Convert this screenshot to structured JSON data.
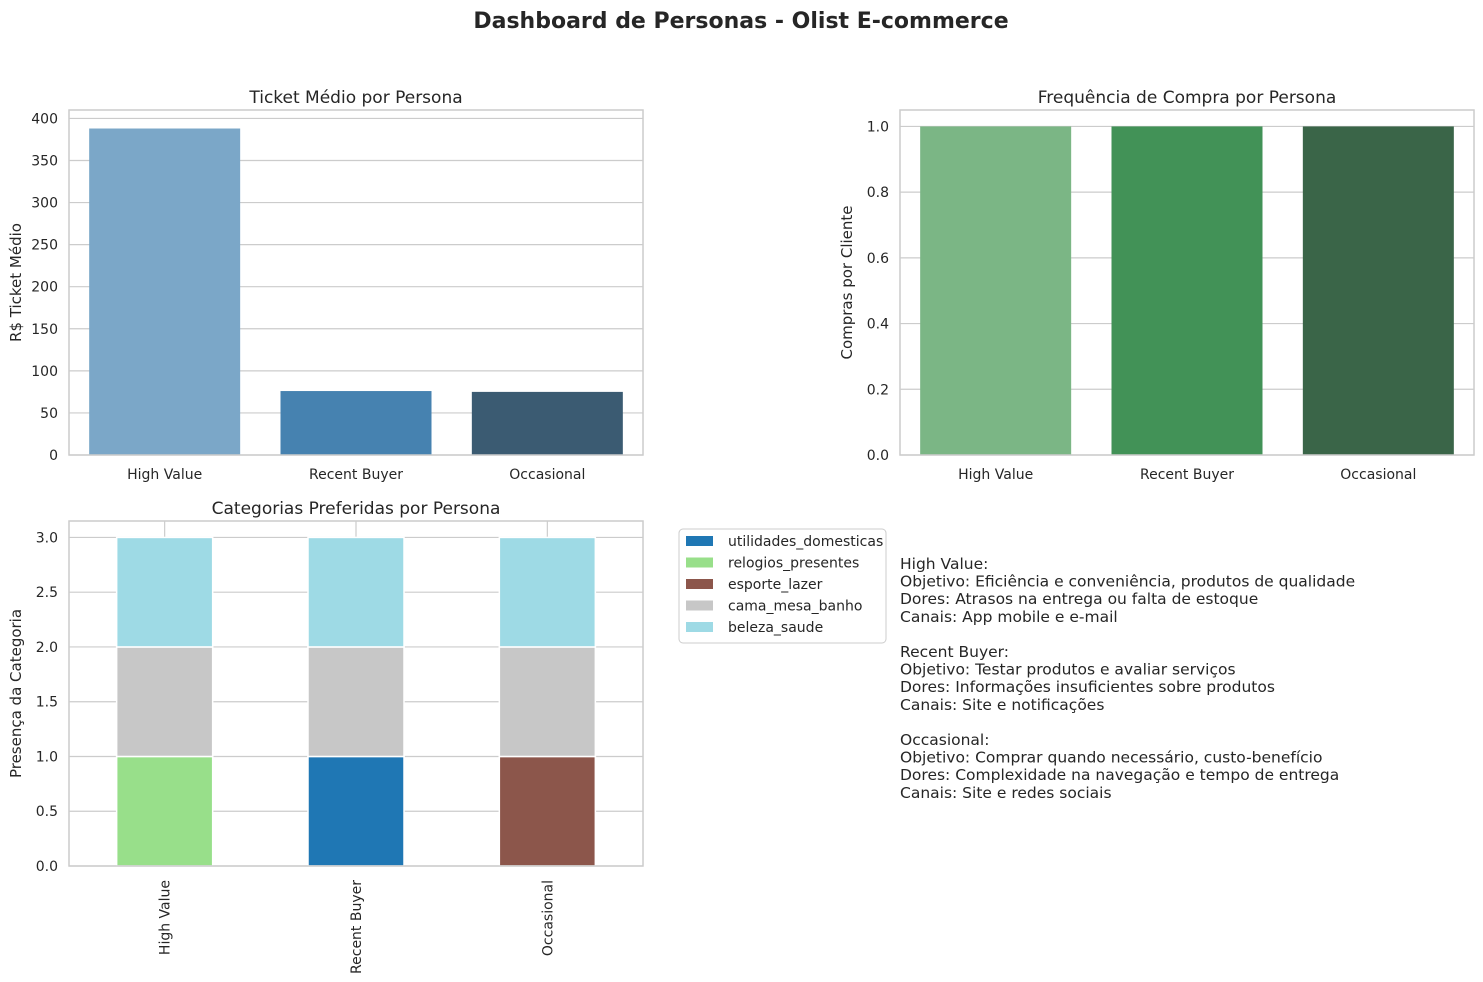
{
  "title": "Dashboard de Personas - Olist E-commerce",
  "chart_data": [
    {
      "type": "bar",
      "title": "Ticket Médio por Persona",
      "xlabel": "",
      "ylabel": "R$ Ticket Médio",
      "categories": [
        "High Value",
        "Recent Buyer",
        "Occasional"
      ],
      "values": [
        388,
        76,
        75
      ],
      "colors": [
        "#7ba7c8",
        "#4682b0",
        "#3b5b72"
      ],
      "ylim": [
        0,
        410
      ],
      "yticks": [
        0,
        50,
        100,
        150,
        200,
        250,
        300,
        350,
        400
      ],
      "grid": true
    },
    {
      "type": "bar",
      "title": "Frequência de Compra por Persona",
      "xlabel": "",
      "ylabel": "Compras por Cliente",
      "categories": [
        "High Value",
        "Recent Buyer",
        "Occasional"
      ],
      "values": [
        1.0,
        1.0,
        1.0
      ],
      "colors": [
        "#7bb685",
        "#429257",
        "#3a6548"
      ],
      "ylim": [
        0,
        1.05
      ],
      "yticks": [
        "0.0",
        "0.2",
        "0.4",
        "0.6",
        "0.8",
        "1.0"
      ],
      "grid": true
    },
    {
      "type": "bar",
      "stacked": true,
      "title": "Categorias Preferidas por Persona",
      "xlabel": "",
      "ylabel": "Presença da Categoria",
      "categories": [
        "High Value",
        "Recent Buyer",
        "Occasional"
      ],
      "series": [
        {
          "name": "utilidades_domesticas",
          "color": "#1f77b4",
          "values": [
            0,
            1,
            0
          ]
        },
        {
          "name": "relogios_presentes",
          "color": "#98df8a",
          "values": [
            1,
            0,
            0
          ]
        },
        {
          "name": "esporte_lazer",
          "color": "#8c564b",
          "values": [
            0,
            0,
            1
          ]
        },
        {
          "name": "cama_mesa_banho",
          "color": "#c7c7c7",
          "values": [
            1,
            1,
            1
          ]
        },
        {
          "name": "beleza_saude",
          "color": "#9edae5",
          "values": [
            1,
            1,
            1
          ]
        }
      ],
      "ylim": [
        0,
        3.15
      ],
      "yticks": [
        "0.0",
        "0.5",
        "1.0",
        "1.5",
        "2.0",
        "2.5",
        "3.0"
      ],
      "legend_position": "outside-right",
      "grid": true
    }
  ],
  "personas_text": [
    {
      "name": "High Value:",
      "lines": [
        "Objetivo: Eficiência e conveniência, produtos de qualidade",
        "Dores: Atrasos na entrega ou falta de estoque",
        "Canais: App mobile e e-mail"
      ]
    },
    {
      "name": "Recent Buyer:",
      "lines": [
        "Objetivo: Testar produtos e avaliar serviços",
        "Dores: Informações insuficientes sobre produtos",
        "Canais: Site e notificações"
      ]
    },
    {
      "name": "Occasional:",
      "lines": [
        "Objetivo: Comprar quando necessário, custo-benefício",
        "Dores: Complexidade na navegação e tempo de entrega",
        "Canais: Site e redes sociais"
      ]
    }
  ]
}
